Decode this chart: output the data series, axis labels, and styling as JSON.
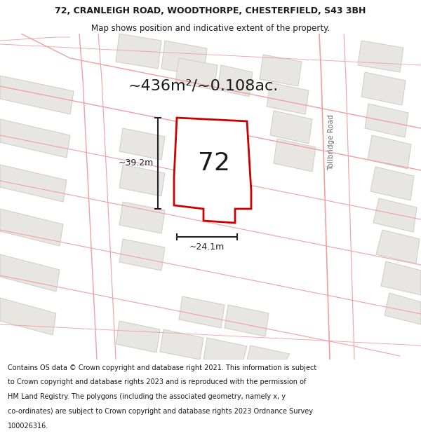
{
  "title_line1": "72, CRANLEIGH ROAD, WOODTHORPE, CHESTERFIELD, S43 3BH",
  "title_line2": "Map shows position and indicative extent of the property.",
  "footer_lines": [
    "Contains OS data © Crown copyright and database right 2021. This information is subject",
    "to Crown copyright and database rights 2023 and is reproduced with the permission of",
    "HM Land Registry. The polygons (including the associated geometry, namely x, y",
    "co-ordinates) are subject to Crown copyright and database rights 2023 Ordnance Survey",
    "100026316."
  ],
  "area_text": "~436m²/~0.108ac.",
  "width_text": "~24.1m",
  "height_text": "~39.2m",
  "label_text": "72",
  "map_bg": "#f2f0ed",
  "building_fill": "#e8e6e2",
  "building_ec": "#d0ccc6",
  "road_pink": "#f0a0a0",
  "highlight_fill": "#ffffff",
  "highlight_ec": "#cc0000",
  "dim_color": "#222222",
  "text_dark": "#1a1a1a",
  "text_gray": "#888888",
  "tollbridge_text": "Tollbridge Road",
  "title_fontsize": 9.0,
  "subtitle_fontsize": 8.5,
  "footer_fontsize": 7.0,
  "area_fontsize": 16,
  "label_fontsize": 26,
  "dim_fontsize": 9
}
